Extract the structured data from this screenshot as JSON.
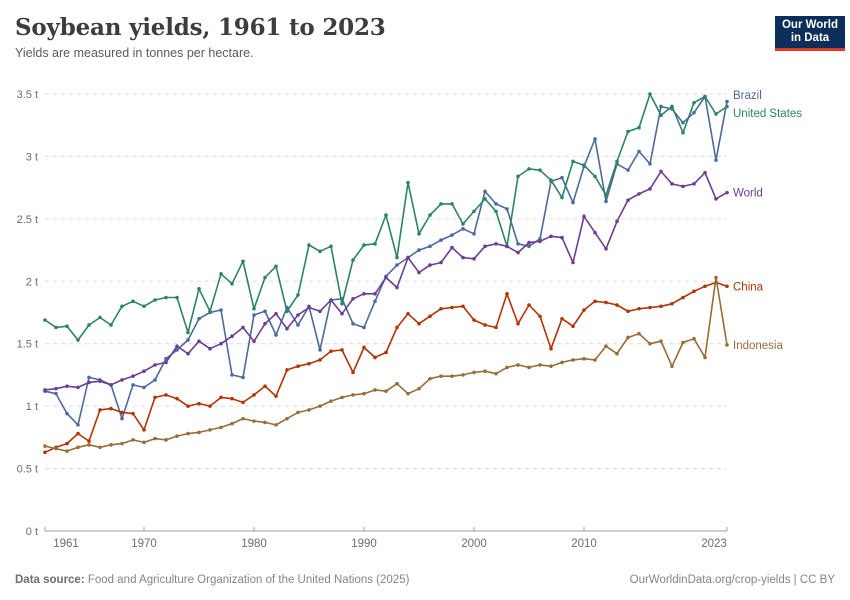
{
  "header": {
    "title": "Soybean yields, 1961 to 2023",
    "subtitle": "Yields are measured in tonnes per hectare."
  },
  "logo": {
    "line1": "Our World",
    "line2": "in Data",
    "bg_color": "#0d2e5a",
    "accent_color": "#dc3a25"
  },
  "footer": {
    "source_label": "Data source:",
    "source_text": " Food and Agriculture Organization of the United Nations (2025)",
    "citation": "OurWorldinData.org/crop-yields | CC BY"
  },
  "chart_data": {
    "type": "line",
    "title": "Soybean yields, 1961 to 2023",
    "subtitle": "Yields are measured in tonnes per hectare.",
    "unit": "t",
    "xlabel": "",
    "ylabel": "",
    "grid": "horizontal-dashed",
    "grid_color": "#dcdcdc",
    "axis_color": "#a0a0a0",
    "tick_label_color": "#6e6e6e",
    "legend_position": "line-end-labels-right",
    "x_range": [
      1961,
      2023
    ],
    "ylim": [
      0,
      3.5
    ],
    "x_ticks": [
      1961,
      1970,
      1980,
      1990,
      2000,
      2010,
      2023
    ],
    "y_ticks": [
      0,
      0.5,
      1,
      1.5,
      2,
      2.5,
      3,
      3.5
    ],
    "x": [
      1961,
      1962,
      1963,
      1964,
      1965,
      1966,
      1967,
      1968,
      1969,
      1970,
      1971,
      1972,
      1973,
      1974,
      1975,
      1976,
      1977,
      1978,
      1979,
      1980,
      1981,
      1982,
      1983,
      1984,
      1985,
      1986,
      1987,
      1988,
      1989,
      1990,
      1991,
      1992,
      1993,
      1994,
      1995,
      1996,
      1997,
      1998,
      1999,
      2000,
      2001,
      2002,
      2003,
      2004,
      2005,
      2006,
      2007,
      2008,
      2009,
      2010,
      2011,
      2012,
      2013,
      2014,
      2015,
      2016,
      2017,
      2018,
      2019,
      2020,
      2021,
      2022,
      2023
    ],
    "series": [
      {
        "name": "Brazil",
        "color": "#4C6A9C",
        "values": [
          1.12,
          1.1,
          0.94,
          0.85,
          1.23,
          1.21,
          1.17,
          0.9,
          1.17,
          1.15,
          1.21,
          1.38,
          1.45,
          1.53,
          1.7,
          1.75,
          1.77,
          1.25,
          1.23,
          1.73,
          1.76,
          1.57,
          1.79,
          1.65,
          1.8,
          1.45,
          1.85,
          1.86,
          1.66,
          1.63,
          1.84,
          2.04,
          2.13,
          2.19,
          2.25,
          2.28,
          2.33,
          2.37,
          2.42,
          2.38,
          2.72,
          2.62,
          2.58,
          2.3,
          2.28,
          2.34,
          2.8,
          2.83,
          2.63,
          2.92,
          3.14,
          2.64,
          2.94,
          2.89,
          3.04,
          2.94,
          3.4,
          3.38,
          3.27,
          3.35,
          3.48,
          2.97,
          3.44
        ]
      },
      {
        "name": "United States",
        "color": "#2C8465",
        "values": [
          1.69,
          1.63,
          1.64,
          1.53,
          1.65,
          1.71,
          1.65,
          1.8,
          1.84,
          1.8,
          1.85,
          1.87,
          1.87,
          1.59,
          1.94,
          1.76,
          2.06,
          1.98,
          2.16,
          1.78,
          2.03,
          2.12,
          1.76,
          1.89,
          2.29,
          2.24,
          2.28,
          1.82,
          2.17,
          2.29,
          2.3,
          2.53,
          2.19,
          2.79,
          2.38,
          2.53,
          2.62,
          2.62,
          2.46,
          2.56,
          2.66,
          2.56,
          2.28,
          2.84,
          2.9,
          2.89,
          2.81,
          2.67,
          2.96,
          2.93,
          2.84,
          2.69,
          2.96,
          3.2,
          3.23,
          3.5,
          3.33,
          3.4,
          3.19,
          3.43,
          3.48,
          3.34,
          3.4
        ]
      },
      {
        "name": "World",
        "color": "#6D3E91",
        "values": [
          1.13,
          1.14,
          1.16,
          1.15,
          1.19,
          1.2,
          1.17,
          1.21,
          1.24,
          1.28,
          1.33,
          1.35,
          1.48,
          1.42,
          1.52,
          1.46,
          1.5,
          1.56,
          1.63,
          1.52,
          1.66,
          1.74,
          1.62,
          1.73,
          1.79,
          1.76,
          1.85,
          1.74,
          1.86,
          1.9,
          1.9,
          2.03,
          1.95,
          2.19,
          2.07,
          2.13,
          2.15,
          2.27,
          2.19,
          2.18,
          2.28,
          2.3,
          2.28,
          2.23,
          2.31,
          2.32,
          2.36,
          2.35,
          2.15,
          2.52,
          2.39,
          2.26,
          2.48,
          2.65,
          2.7,
          2.74,
          2.88,
          2.78,
          2.76,
          2.78,
          2.87,
          2.66,
          2.71
        ]
      },
      {
        "name": "China",
        "color": "#B13507",
        "values": [
          0.63,
          0.67,
          0.7,
          0.78,
          0.72,
          0.97,
          0.98,
          0.95,
          0.94,
          0.81,
          1.07,
          1.09,
          1.06,
          1.0,
          1.02,
          1.0,
          1.07,
          1.06,
          1.03,
          1.09,
          1.16,
          1.08,
          1.29,
          1.32,
          1.34,
          1.37,
          1.44,
          1.45,
          1.27,
          1.47,
          1.39,
          1.43,
          1.63,
          1.74,
          1.66,
          1.72,
          1.78,
          1.79,
          1.8,
          1.69,
          1.65,
          1.63,
          1.9,
          1.66,
          1.81,
          1.72,
          1.46,
          1.7,
          1.64,
          1.77,
          1.84,
          1.83,
          1.81,
          1.76,
          1.78,
          1.79,
          1.8,
          1.82,
          1.87,
          1.92,
          1.96,
          1.99,
          1.96
        ]
      },
      {
        "name": "Indonesia",
        "color": "#996D39",
        "values": [
          0.68,
          0.66,
          0.64,
          0.67,
          0.69,
          0.67,
          0.69,
          0.7,
          0.73,
          0.71,
          0.74,
          0.73,
          0.76,
          0.78,
          0.79,
          0.81,
          0.83,
          0.86,
          0.9,
          0.88,
          0.87,
          0.85,
          0.9,
          0.95,
          0.97,
          1.0,
          1.04,
          1.07,
          1.09,
          1.1,
          1.13,
          1.12,
          1.18,
          1.1,
          1.14,
          1.22,
          1.24,
          1.24,
          1.25,
          1.27,
          1.28,
          1.26,
          1.31,
          1.33,
          1.31,
          1.33,
          1.32,
          1.35,
          1.37,
          1.38,
          1.37,
          1.48,
          1.42,
          1.55,
          1.58,
          1.5,
          1.52,
          1.32,
          1.51,
          1.54,
          1.39,
          2.03,
          1.49
        ]
      }
    ]
  }
}
